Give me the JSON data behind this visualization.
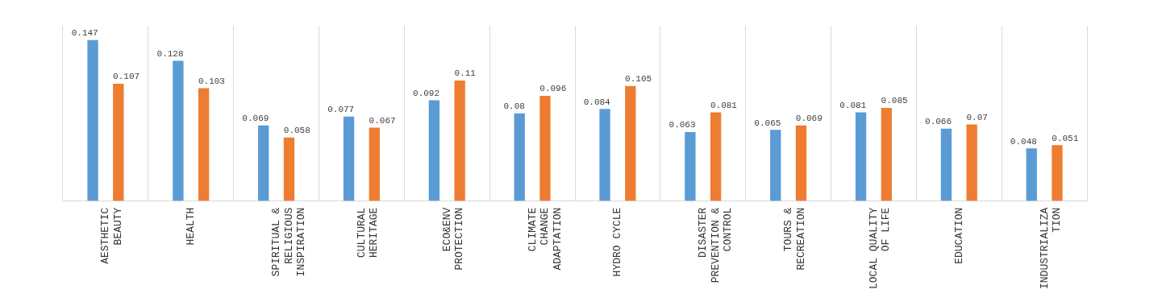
{
  "chart_data": {
    "type": "bar",
    "categories": [
      "AESTHETIC\nBEAUTY",
      "HEALTH",
      "SPIRITUAL &\nRELIGIOUS\nINSPIRATION",
      "CULTURAL\nHERITAGE",
      "ECO&ENV\nPROTECTION",
      "CLIMATE\nCHANGE\nADAPTATION",
      "HYDRO CYCLE",
      "DISASTER\nPREVENTION &\nCONTROL",
      "TOURS &\nRECREATION",
      "LOCAL QUALITY\nOF LIFE",
      "EDUCATION",
      "INDUSTRIALIZA\nTION"
    ],
    "series": [
      {
        "color": "#5b9bd5",
        "values": [
          0.147,
          0.128,
          0.069,
          0.077,
          0.092,
          0.08,
          0.084,
          0.063,
          0.065,
          0.081,
          0.066,
          0.048
        ]
      },
      {
        "color": "#ed7d31",
        "values": [
          0.107,
          0.103,
          0.058,
          0.067,
          0.11,
          0.096,
          0.105,
          0.081,
          0.069,
          0.085,
          0.07,
          0.051
        ]
      }
    ],
    "data_labels": true,
    "grid": "x",
    "legend": false
  }
}
